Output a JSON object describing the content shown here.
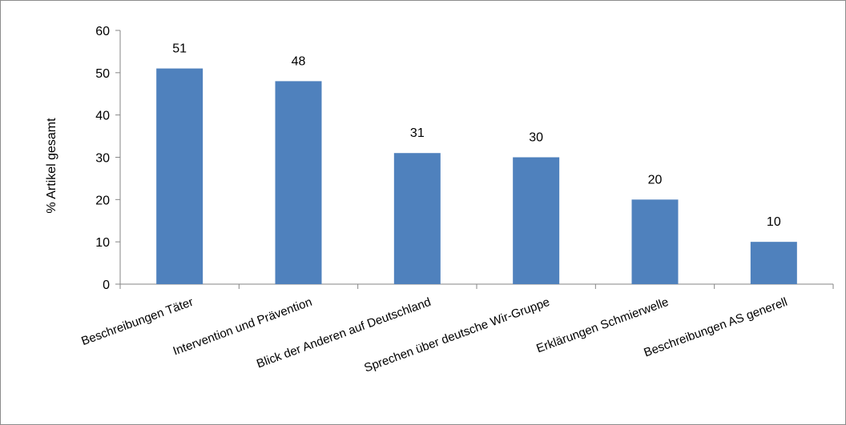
{
  "chart_data": {
    "type": "bar",
    "categories": [
      "Beschreibungen Täter",
      "Intervention und Prävention",
      "Blick der Anderen auf Deutschland",
      "Sprechen über deutsche Wir-Gruppe",
      "Erklärungen Schmierwelle",
      "Beschreibungen AS generell"
    ],
    "values": [
      51,
      48,
      31,
      30,
      20,
      10
    ],
    "data_labels": [
      "51",
      "48",
      "31",
      "30",
      "20",
      "10"
    ],
    "ylabel": "% Artikel gesamt",
    "xlabel": "",
    "ylim": [
      0,
      60
    ],
    "yticks": [
      0,
      10,
      20,
      30,
      40,
      50,
      60
    ],
    "ytick_labels": [
      "0",
      "10",
      "20",
      "30",
      "40",
      "50",
      "60"
    ],
    "bar_color": "#4f81bd",
    "grid": false,
    "legend": "none"
  }
}
